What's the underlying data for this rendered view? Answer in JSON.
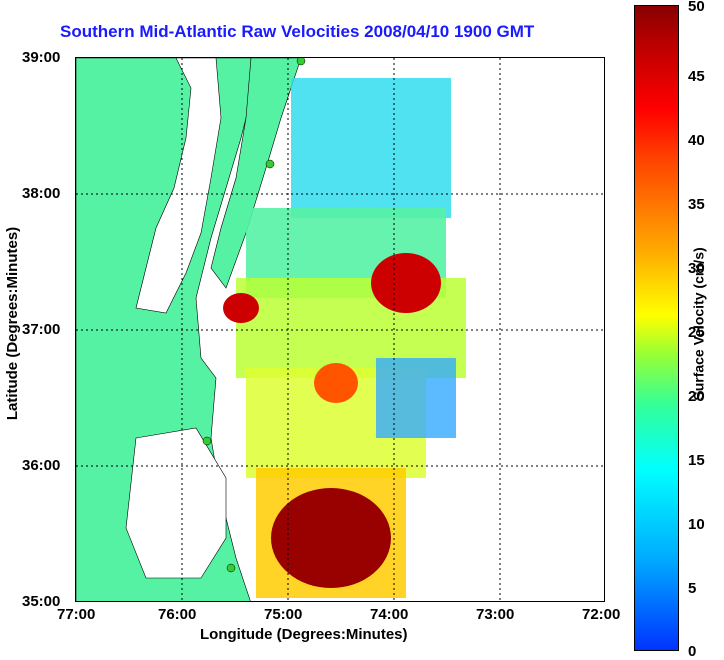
{
  "title": "Southern Mid-Atlantic Raw Velocities 2008/04/10 1900 GMT",
  "xlabel": "Longitude (Degrees:Minutes)",
  "ylabel": "Latitude (Degrees:Minutes)",
  "colorbar": {
    "label": "Surface Velocity (cm/s)",
    "ticks": [
      "0",
      "5",
      "10",
      "15",
      "20",
      "25",
      "30",
      "35",
      "40",
      "45",
      "50"
    ],
    "range": [
      0,
      50
    ],
    "colors": [
      "#0033ff",
      "#00ffff",
      "#33ff99",
      "#ffff00",
      "#ff4400",
      "#880000"
    ]
  },
  "x_ticks": [
    "77:00",
    "76:00",
    "75:00",
    "74:00",
    "73:00",
    "72:00"
  ],
  "y_ticks": [
    "39:00",
    "38:00",
    "37:00",
    "36:00",
    "35:00"
  ],
  "colors": {
    "land": "#55f2a4",
    "title": "#1a1aff",
    "grid": "#000000",
    "station": "#33cc33"
  }
}
